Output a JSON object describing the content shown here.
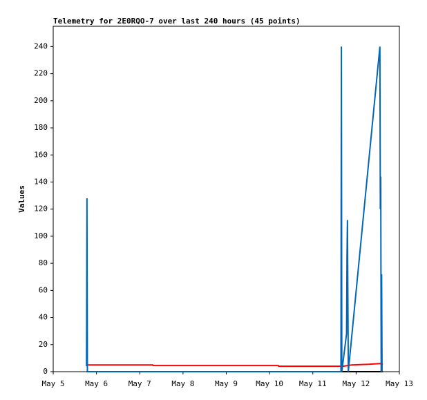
{
  "chart_data": {
    "type": "line",
    "title": "Telemetry for 2E0RQO-7 over last 240 hours (45 points)",
    "y_label": "Values",
    "xlim": [
      5,
      13
    ],
    "xticks": [
      {
        "value": 5,
        "label": "May 5"
      },
      {
        "value": 6,
        "label": "May 6"
      },
      {
        "value": 7,
        "label": "May 7"
      },
      {
        "value": 8,
        "label": "May 8"
      },
      {
        "value": 9,
        "label": "May 9"
      },
      {
        "value": 10,
        "label": "May 10"
      },
      {
        "value": 11,
        "label": "May 11"
      },
      {
        "value": 12,
        "label": "May 12"
      },
      {
        "value": 13,
        "label": "May 13"
      }
    ],
    "ylim": [
      0,
      255
    ],
    "yticks": [
      0,
      20,
      40,
      60,
      80,
      100,
      120,
      140,
      160,
      180,
      200,
      220,
      240
    ],
    "series": [
      {
        "color": "#000000",
        "x": [
          5.77,
          12.62
        ],
        "values": [
          0,
          0
        ]
      },
      {
        "color": "#ff0000",
        "x": [
          5.77,
          7.3,
          7.31,
          10.2,
          10.21,
          11.7,
          11.9,
          12.3,
          12.55,
          12.62
        ],
        "values": [
          5,
          5,
          4.5,
          4.5,
          4,
          4,
          5,
          5.5,
          6,
          5.5
        ]
      },
      {
        "color": "#0066bb",
        "x": [
          5.77,
          5.78,
          5.79,
          11.65,
          11.66,
          11.67,
          11.78,
          11.79,
          11.8,
          11.81,
          11.82,
          12.55,
          12.56,
          12.57,
          12.58,
          12.59,
          12.6
        ],
        "values": [
          4,
          128,
          0,
          0,
          240,
          0,
          28,
          84,
          112,
          56,
          0,
          240,
          120,
          144,
          0,
          72,
          0
        ]
      }
    ]
  }
}
